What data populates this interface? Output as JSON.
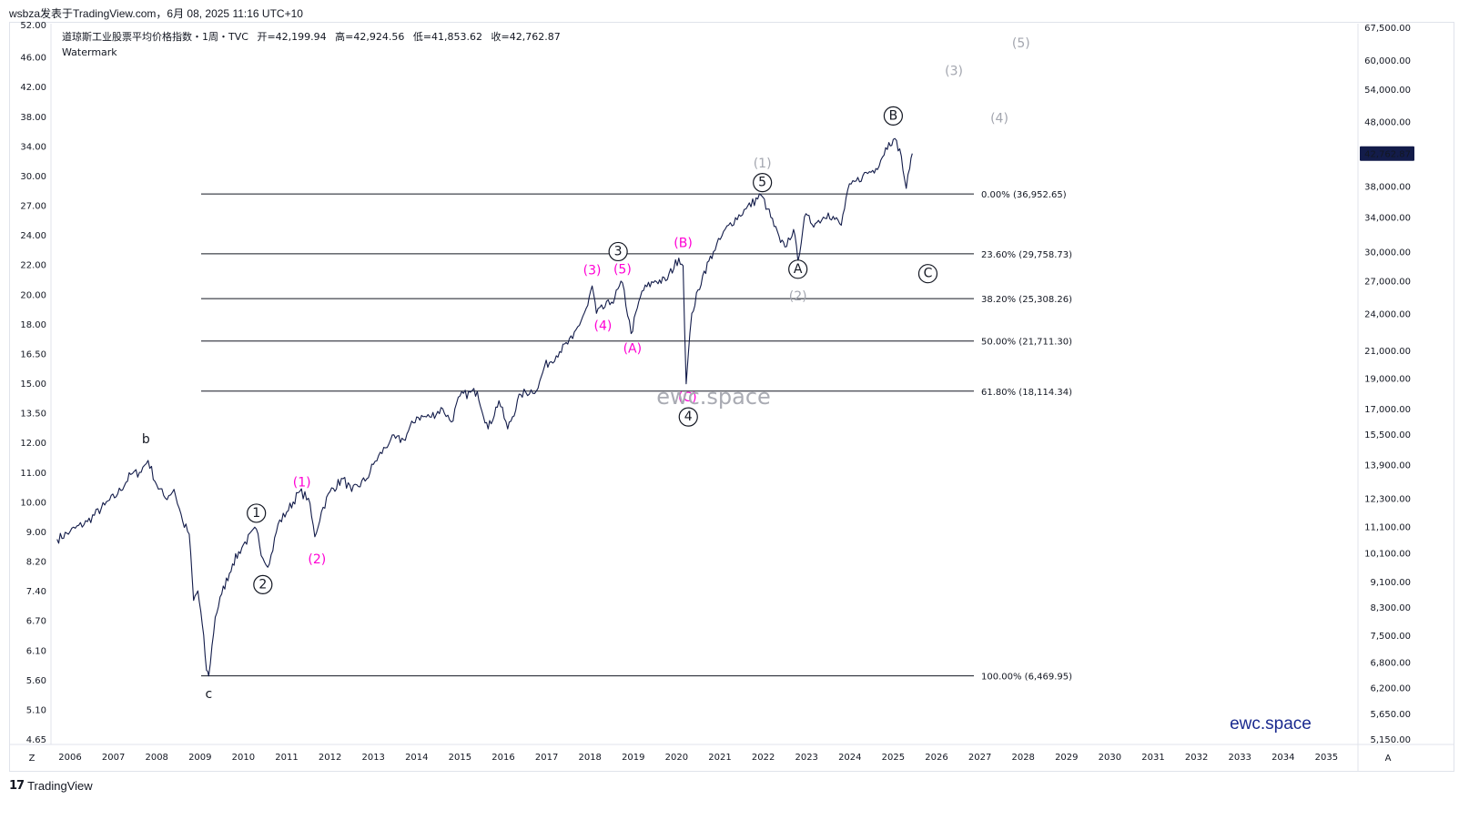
{
  "header": {
    "credit": "wsbza发表于TradingView.com，6月 08, 2025 11:16 UTC+10"
  },
  "legend": {
    "title": "道琼斯工业股票平均价格指数・1周・TVC",
    "open_label": "开",
    "open_value": "=42,199.94",
    "high_label": "高",
    "high_value": "=42,924.56",
    "low_label": "低",
    "low_value": "=41,853.62",
    "close_label": "收",
    "close_value": "=42,762.87",
    "watermark_label": "Watermark"
  },
  "watermarks": {
    "center": "ewc.space",
    "corner": "ewc.space"
  },
  "footer": {
    "brand": "TradingView",
    "logo_glyph": "17",
    "axis_left_button": "Z",
    "axis_right_button": "A"
  },
  "colors": {
    "price_line": "#131c4a",
    "grid_line": "#131722",
    "pink": "#ff00d4",
    "gray": "#a3a6af",
    "black": "#131722",
    "brand_blue": "#1a2a8f",
    "price_badge_bg": "#131c4a"
  },
  "chart_data": {
    "type": "line",
    "title": "道琼斯工业股票平均价格指数・1周・TVC",
    "log_scale": true,
    "x_axis": {
      "ticks": [
        "2006",
        "2007",
        "2008",
        "2009",
        "2010",
        "2011",
        "2012",
        "2013",
        "2014",
        "2015",
        "2016",
        "2017",
        "2018",
        "2019",
        "2020",
        "2021",
        "2022",
        "2023",
        "2024",
        "2025",
        "2026",
        "2027",
        "2028",
        "2029",
        "2030",
        "2031",
        "2032",
        "2033",
        "2034",
        "2035"
      ],
      "range": [
        2005.65,
        2036.65
      ]
    },
    "y_axis_right": {
      "ticks": [
        "67,500.00",
        "60,000.00",
        "54,000.00",
        "48,000.00",
        "42,762.87",
        "38,000.00",
        "34,000.00",
        "30,000.00",
        "27,000.00",
        "24,000.00",
        "21,000.00",
        "19,000.00",
        "17,000.00",
        "15,500.00",
        "13,900.00",
        "12,300.00",
        "11,100.00",
        "10,100.00",
        "9,100.00",
        "8,300.00",
        "7,500.00",
        "6,800.00",
        "6,200.00",
        "5,650.00",
        "5,150.00"
      ],
      "current_price": "42,762.87"
    },
    "y_axis_left": {
      "ticks": [
        "52.00",
        "46.00",
        "42.00",
        "38.00",
        "34.00",
        "30.00",
        "27.00",
        "24.00",
        "22.00",
        "20.00",
        "18.00",
        "16.50",
        "15.00",
        "13.50",
        "12.00",
        "11.00",
        "10.00",
        "9.00",
        "8.20",
        "7.40",
        "6.70",
        "6.10",
        "5.60",
        "5.10",
        "4.65"
      ]
    },
    "series": [
      {
        "values": [
          [
            2005.7,
            10600
          ],
          [
            2006.0,
            10900
          ],
          [
            2006.4,
            11300
          ],
          [
            2006.8,
            12000
          ],
          [
            2007.1,
            12500
          ],
          [
            2007.4,
            13400
          ],
          [
            2007.6,
            13500
          ],
          [
            2007.8,
            14100
          ],
          [
            2008.0,
            12900
          ],
          [
            2008.2,
            12300
          ],
          [
            2008.4,
            12700
          ],
          [
            2008.6,
            11300
          ],
          [
            2008.75,
            10800
          ],
          [
            2008.85,
            8500
          ],
          [
            2008.95,
            8800
          ],
          [
            2009.05,
            7800
          ],
          [
            2009.15,
            6600
          ],
          [
            2009.2,
            6470
          ],
          [
            2009.35,
            8000
          ],
          [
            2009.5,
            8700
          ],
          [
            2009.75,
            9700
          ],
          [
            2010.0,
            10400
          ],
          [
            2010.3,
            11000
          ],
          [
            2010.45,
            9900
          ],
          [
            2010.6,
            9700
          ],
          [
            2010.8,
            11200
          ],
          [
            2011.0,
            11700
          ],
          [
            2011.3,
            12600
          ],
          [
            2011.5,
            12300
          ],
          [
            2011.65,
            10700
          ],
          [
            2011.8,
            11700
          ],
          [
            2012.0,
            12600
          ],
          [
            2012.3,
            13200
          ],
          [
            2012.5,
            12600
          ],
          [
            2012.85,
            13200
          ],
          [
            2013.0,
            13900
          ],
          [
            2013.4,
            15200
          ],
          [
            2013.7,
            15200
          ],
          [
            2014.0,
            16500
          ],
          [
            2014.3,
            16500
          ],
          [
            2014.6,
            17000
          ],
          [
            2014.8,
            16200
          ],
          [
            2015.0,
            17800
          ],
          [
            2015.4,
            18100
          ],
          [
            2015.65,
            15800
          ],
          [
            2015.9,
            17500
          ],
          [
            2016.1,
            15800
          ],
          [
            2016.4,
            17900
          ],
          [
            2016.8,
            18300
          ],
          [
            2016.95,
            19800
          ],
          [
            2017.3,
            20900
          ],
          [
            2017.6,
            21900
          ],
          [
            2017.95,
            24700
          ],
          [
            2018.05,
            26500
          ],
          [
            2018.15,
            24000
          ],
          [
            2018.5,
            25000
          ],
          [
            2018.75,
            26800
          ],
          [
            2018.95,
            22300
          ],
          [
            2019.2,
            26000
          ],
          [
            2019.5,
            27000
          ],
          [
            2019.75,
            27000
          ],
          [
            2020.05,
            29300
          ],
          [
            2020.15,
            28500
          ],
          [
            2020.22,
            18600
          ],
          [
            2020.35,
            24000
          ],
          [
            2020.6,
            27500
          ],
          [
            2020.85,
            30000
          ],
          [
            2021.2,
            33000
          ],
          [
            2021.6,
            35000
          ],
          [
            2021.95,
            36800
          ],
          [
            2022.1,
            35000
          ],
          [
            2022.4,
            31000
          ],
          [
            2022.5,
            30500
          ],
          [
            2022.7,
            32500
          ],
          [
            2022.8,
            29000
          ],
          [
            2022.95,
            34000
          ],
          [
            2023.2,
            33200
          ],
          [
            2023.5,
            34500
          ],
          [
            2023.8,
            33000
          ],
          [
            2023.95,
            37500
          ],
          [
            2024.3,
            39500
          ],
          [
            2024.6,
            40500
          ],
          [
            2024.9,
            44500
          ],
          [
            2025.0,
            45000
          ],
          [
            2025.15,
            43500
          ],
          [
            2025.3,
            37700
          ],
          [
            2025.38,
            40500
          ],
          [
            2025.44,
            42762.87
          ]
        ]
      }
    ],
    "fibonacci": [
      {
        "label": "0.00% (36,952.65)",
        "price": 36952.65
      },
      {
        "label": "23.60% (29,758.73)",
        "price": 29758.73
      },
      {
        "label": "38.20% (25,308.26)",
        "price": 25308.26
      },
      {
        "label": "50.00% (21,711.30)",
        "price": 21711.3
      },
      {
        "label": "61.80% (18,114.34)",
        "price": 18114.34
      },
      {
        "label": "100.00% (6,469.95)",
        "price": 6469.95
      }
    ],
    "wave_labels": [
      {
        "text": "b",
        "year": 2007.75,
        "price": 15200,
        "style": "black"
      },
      {
        "text": "c",
        "year": 2009.2,
        "price": 6050,
        "style": "black"
      },
      {
        "text": "1",
        "year": 2010.3,
        "price": 11650,
        "style": "circle"
      },
      {
        "text": "2",
        "year": 2010.45,
        "price": 9000,
        "style": "circle"
      },
      {
        "text": "(1)",
        "year": 2011.35,
        "price": 13000,
        "style": "pink"
      },
      {
        "text": "(2)",
        "year": 2011.7,
        "price": 9850,
        "style": "pink"
      },
      {
        "text": "(3)",
        "year": 2018.05,
        "price": 28000,
        "style": "pink"
      },
      {
        "text": "(5)",
        "year": 2018.75,
        "price": 28100,
        "style": "pink"
      },
      {
        "text": "3",
        "year": 2018.65,
        "price": 30000,
        "style": "circle"
      },
      {
        "text": "(4)",
        "year": 2018.3,
        "price": 22900,
        "style": "pink"
      },
      {
        "text": "(A)",
        "year": 2018.98,
        "price": 21100,
        "style": "pink"
      },
      {
        "text": "(B)",
        "year": 2020.15,
        "price": 30900,
        "style": "pink"
      },
      {
        "text": "(C)",
        "year": 2020.25,
        "price": 17700,
        "style": "pink"
      },
      {
        "text": "4",
        "year": 2020.27,
        "price": 16500,
        "style": "circle"
      },
      {
        "text": "(1)",
        "year": 2021.98,
        "price": 41200,
        "style": "gray"
      },
      {
        "text": "5",
        "year": 2021.98,
        "price": 38500,
        "style": "circle"
      },
      {
        "text": "A",
        "year": 2022.8,
        "price": 28150,
        "style": "circle"
      },
      {
        "text": "(2)",
        "year": 2022.8,
        "price": 25500,
        "style": "gray"
      },
      {
        "text": "B",
        "year": 2025.0,
        "price": 49000,
        "style": "circle"
      },
      {
        "text": "C",
        "year": 2025.8,
        "price": 27700,
        "style": "circle"
      },
      {
        "text": "(3)",
        "year": 2026.4,
        "price": 57500,
        "style": "gray"
      },
      {
        "text": "(4)",
        "year": 2027.45,
        "price": 48500,
        "style": "gray"
      },
      {
        "text": "(5)",
        "year": 2027.95,
        "price": 63600,
        "style": "gray"
      }
    ]
  }
}
